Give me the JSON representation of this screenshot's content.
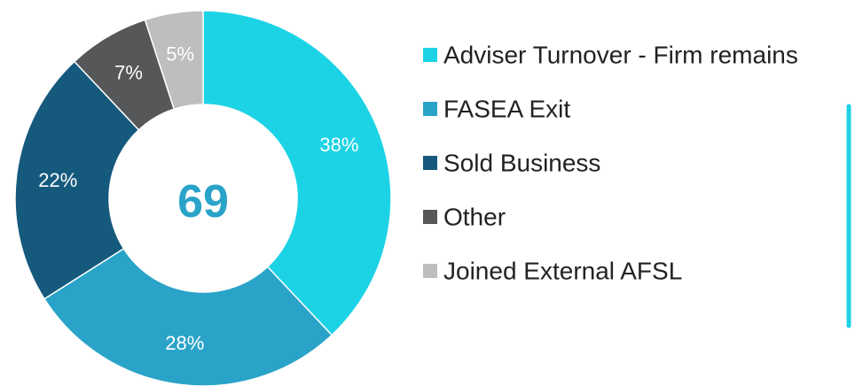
{
  "chart_data": {
    "type": "donut",
    "center_text": "69",
    "categories": [
      "Adviser Turnover - Firm remains",
      "FASEA Exit",
      "Sold Business",
      "Other",
      "Joined External AFSL"
    ],
    "values": [
      38,
      28,
      22,
      7,
      5
    ],
    "value_labels": [
      "38%",
      "28%",
      "22%",
      "7%",
      "5%"
    ],
    "colors": [
      "#1cd3e6",
      "#2aa3c8",
      "#15597c",
      "#555759",
      "#bdbec0"
    ],
    "legend": "right"
  }
}
